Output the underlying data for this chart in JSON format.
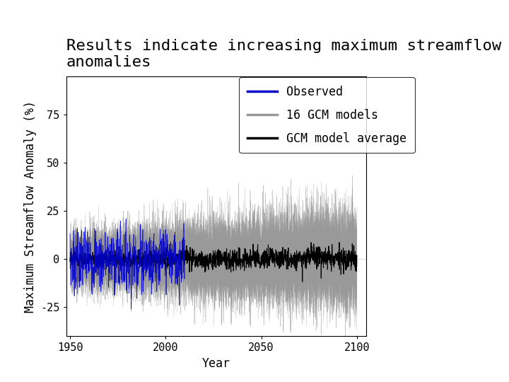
{
  "title_line1": "Results indicate increasing maximum streamflow",
  "title_line2": "anomalies",
  "xlabel": "Year",
  "ylabel": "Maximum Streamflow Anomaly (%)",
  "xlim": [
    1948,
    2105
  ],
  "ylim": [
    -40,
    95
  ],
  "yticks": [
    -25,
    0,
    25,
    50,
    75
  ],
  "xticks": [
    1950,
    2000,
    2050,
    2100
  ],
  "observed_color": "#0000CC",
  "gcm_color": "#999999",
  "gcm_avg_color": "#000000",
  "observed_start_year": 1950,
  "observed_end_year": 2010,
  "gcm_start_year": 1950,
  "gcm_end_year": 2100,
  "n_gcm_models": 16,
  "steps_per_year": 12,
  "title_fontsize": 16,
  "axis_fontsize": 12,
  "tick_fontsize": 11,
  "legend_fontsize": 12,
  "seed": 7,
  "background_color": "#FFFFFF"
}
